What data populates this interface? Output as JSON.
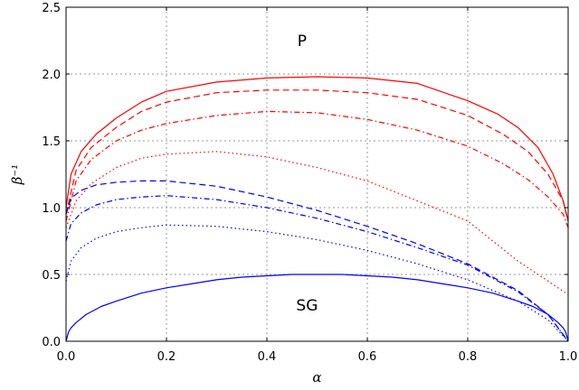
{
  "chart_data": {
    "type": "line",
    "title": "",
    "xlabel": "α",
    "ylabel": "β⁻¹",
    "xlim": [
      0.0,
      1.0
    ],
    "ylim": [
      0.0,
      2.5
    ],
    "grid": true,
    "x_ticks": [
      "0.0",
      "0.2",
      "0.4",
      "0.6",
      "0.8",
      "1.0"
    ],
    "y_ticks": [
      "0.0",
      "0.5",
      "1.0",
      "1.5",
      "2.0",
      "2.5"
    ],
    "annotations": [
      {
        "text": "P",
        "x": 0.47,
        "y": 2.25
      },
      {
        "text": "SG",
        "x": 0.48,
        "y": 0.27
      }
    ],
    "series": [
      {
        "color": "#ff0000",
        "style": "solid",
        "x": [
          0.0,
          0.01,
          0.03,
          0.06,
          0.1,
          0.15,
          0.2,
          0.3,
          0.4,
          0.5,
          0.6,
          0.7,
          0.8,
          0.86,
          0.9,
          0.94,
          0.97,
          0.99,
          1.0
        ],
        "y": [
          1.0,
          1.25,
          1.42,
          1.55,
          1.67,
          1.79,
          1.87,
          1.94,
          1.97,
          1.98,
          1.97,
          1.93,
          1.8,
          1.7,
          1.6,
          1.45,
          1.25,
          1.05,
          0.9
        ]
      },
      {
        "color": "#ff0000",
        "style": "dashed",
        "x": [
          0.0,
          0.02,
          0.05,
          0.1,
          0.15,
          0.2,
          0.3,
          0.4,
          0.5,
          0.6,
          0.7,
          0.8,
          0.87,
          0.92,
          0.96,
          0.99,
          1.0
        ],
        "y": [
          0.95,
          1.28,
          1.45,
          1.6,
          1.72,
          1.79,
          1.86,
          1.88,
          1.88,
          1.86,
          1.81,
          1.69,
          1.55,
          1.42,
          1.25,
          1.05,
          0.9
        ]
      },
      {
        "color": "#ff0000",
        "style": "dashdot",
        "x": [
          0.0,
          0.02,
          0.05,
          0.1,
          0.15,
          0.2,
          0.3,
          0.4,
          0.5,
          0.6,
          0.7,
          0.8,
          0.87,
          0.92,
          0.96,
          0.99,
          1.0
        ],
        "y": [
          0.9,
          1.2,
          1.36,
          1.5,
          1.58,
          1.63,
          1.69,
          1.72,
          1.71,
          1.66,
          1.58,
          1.46,
          1.33,
          1.21,
          1.08,
          0.95,
          0.85
        ]
      },
      {
        "color": "#ff0000",
        "style": "dotted",
        "x": [
          0.0,
          0.02,
          0.05,
          0.1,
          0.15,
          0.2,
          0.25,
          0.3,
          0.4,
          0.5,
          0.6,
          0.7,
          0.8,
          0.9,
          0.96,
          1.0
        ],
        "y": [
          0.85,
          1.05,
          1.18,
          1.3,
          1.37,
          1.4,
          1.41,
          1.42,
          1.38,
          1.3,
          1.2,
          1.05,
          0.9,
          0.6,
          0.45,
          0.35
        ]
      },
      {
        "color": "#0000ff",
        "style": "dashed",
        "x": [
          0.0,
          0.01,
          0.03,
          0.06,
          0.1,
          0.15,
          0.2,
          0.3,
          0.4,
          0.5,
          0.6,
          0.7,
          0.8,
          0.9,
          0.96,
          1.0
        ],
        "y": [
          0.95,
          1.07,
          1.13,
          1.17,
          1.19,
          1.2,
          1.2,
          1.16,
          1.08,
          0.98,
          0.86,
          0.73,
          0.58,
          0.38,
          0.2,
          0.0
        ]
      },
      {
        "color": "#0000ff",
        "style": "dashdot",
        "x": [
          0.0,
          0.01,
          0.03,
          0.06,
          0.1,
          0.15,
          0.2,
          0.3,
          0.4,
          0.5,
          0.6,
          0.7,
          0.8,
          0.9,
          0.96,
          1.0
        ],
        "y": [
          0.75,
          0.88,
          0.96,
          1.02,
          1.06,
          1.08,
          1.09,
          1.06,
          1.0,
          0.92,
          0.82,
          0.7,
          0.57,
          0.37,
          0.2,
          0.0
        ]
      },
      {
        "color": "#0000ff",
        "style": "dotted",
        "x": [
          0.0,
          0.01,
          0.03,
          0.06,
          0.1,
          0.15,
          0.2,
          0.3,
          0.4,
          0.5,
          0.6,
          0.7,
          0.8,
          0.9,
          0.96,
          1.0
        ],
        "y": [
          0.45,
          0.6,
          0.7,
          0.77,
          0.82,
          0.85,
          0.87,
          0.86,
          0.82,
          0.76,
          0.68,
          0.58,
          0.46,
          0.3,
          0.16,
          0.0
        ]
      },
      {
        "color": "#0000ff",
        "style": "solid",
        "x": [
          0.0,
          0.005,
          0.01,
          0.02,
          0.04,
          0.07,
          0.1,
          0.15,
          0.2,
          0.25,
          0.3,
          0.35,
          0.4,
          0.45,
          0.5,
          0.55,
          0.6,
          0.65,
          0.7,
          0.75,
          0.8,
          0.85,
          0.9,
          0.93,
          0.96,
          0.98,
          0.99,
          0.995,
          1.0
        ],
        "y": [
          0.0,
          0.07,
          0.1,
          0.14,
          0.2,
          0.26,
          0.3,
          0.36,
          0.4,
          0.43,
          0.46,
          0.48,
          0.49,
          0.5,
          0.5,
          0.5,
          0.49,
          0.48,
          0.46,
          0.43,
          0.4,
          0.36,
          0.3,
          0.26,
          0.2,
          0.14,
          0.1,
          0.07,
          0.0
        ]
      }
    ]
  }
}
